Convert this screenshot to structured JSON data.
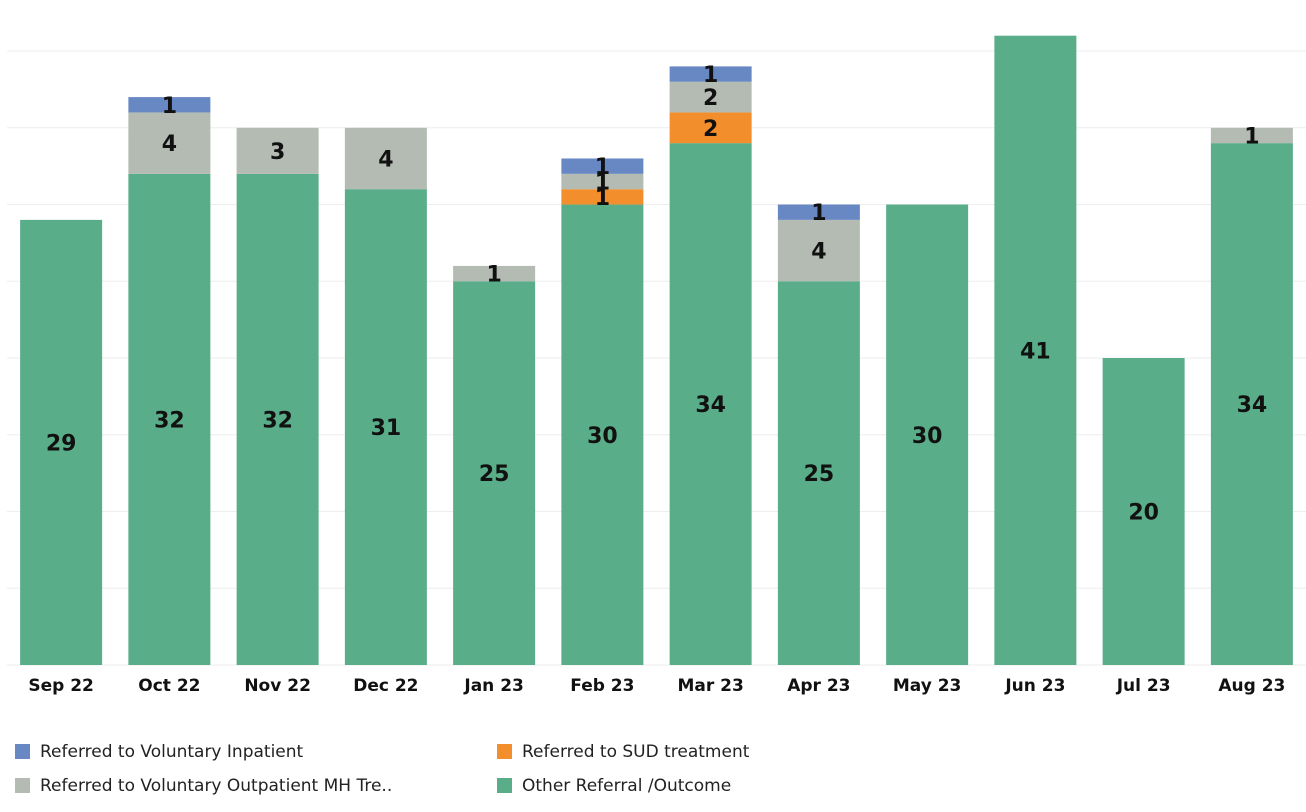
{
  "chart_data": {
    "type": "stacked_bar",
    "categories": [
      "Sep 22",
      "Oct 22",
      "Nov 22",
      "Dec 22",
      "Jan 23",
      "Feb 23",
      "Mar 23",
      "Apr 23",
      "May 23",
      "Jun 23",
      "Jul 23",
      "Aug 23"
    ],
    "series": [
      {
        "name": "Other Referral /Outcome",
        "color": "#59ad89",
        "values": [
          29,
          32,
          32,
          31,
          25,
          30,
          34,
          25,
          30,
          41,
          20,
          34
        ]
      },
      {
        "name": "Referred to SUD treatment",
        "color": "#f28e2b",
        "values": [
          0,
          0,
          0,
          0,
          0,
          1,
          2,
          0,
          0,
          0,
          0,
          0
        ]
      },
      {
        "name": "Referred to Voluntary Outpatient MH Tre..",
        "color": "#b3bbb3",
        "values": [
          0,
          4,
          3,
          4,
          1,
          1,
          2,
          4,
          0,
          0,
          0,
          1
        ]
      },
      {
        "name": "Referred to Voluntary Inpatient",
        "color": "#6788c2",
        "values": [
          0,
          1,
          0,
          0,
          0,
          1,
          1,
          1,
          0,
          0,
          0,
          0
        ]
      }
    ],
    "legend_order": [
      3,
      1,
      2,
      0
    ],
    "ylim": [
      0,
      43
    ],
    "yticks": [
      0,
      5,
      10,
      15,
      20,
      25,
      30,
      35,
      40
    ],
    "grid": true
  }
}
